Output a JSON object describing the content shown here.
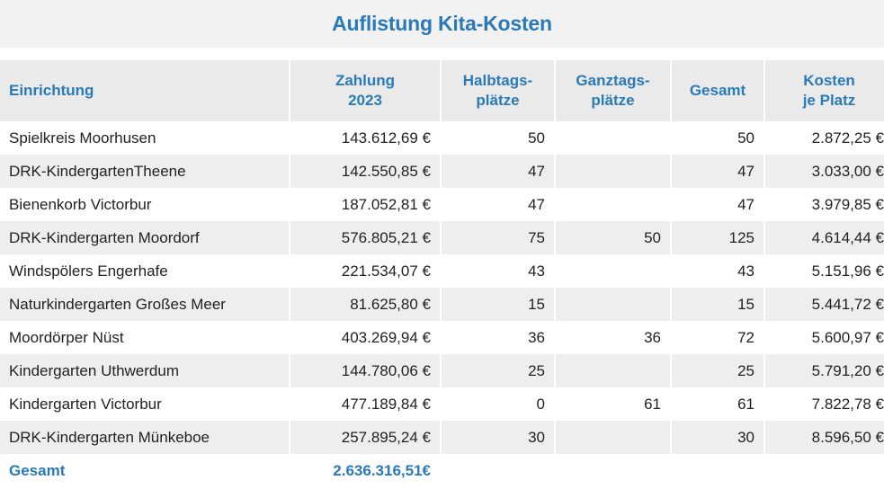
{
  "title": "Auflistung Kita-Kosten",
  "columns": {
    "einrichtung": "Einrichtung",
    "zahlung_l1": "Zahlung",
    "zahlung_l2": "2023",
    "halbtags_l1": "Halbtags-",
    "halbtags_l2": "plätze",
    "ganztags_l1": "Ganztags-",
    "ganztags_l2": "plätze",
    "gesamt": "Gesamt",
    "kosten_l1": "Kosten",
    "kosten_l2": "je Platz"
  },
  "rows": [
    {
      "name": "Spielkreis Moorhusen",
      "zahlung": "143.612,69 €",
      "halbtags": "50",
      "ganztags": "",
      "gesamt": "50",
      "kosten": "2.872,25 €"
    },
    {
      "name": "DRK-KindergartenTheene",
      "zahlung": "142.550,85 €",
      "halbtags": "47",
      "ganztags": "",
      "gesamt": "47",
      "kosten": "3.033,00 €"
    },
    {
      "name": "Bienenkorb Victorbur",
      "zahlung": "187.052,81 €",
      "halbtags": "47",
      "ganztags": "",
      "gesamt": "47",
      "kosten": "3.979,85 €"
    },
    {
      "name": "DRK-Kindergarten Moordorf",
      "zahlung": "576.805,21 €",
      "halbtags": "75",
      "ganztags": "50",
      "gesamt": "125",
      "kosten": "4.614,44 €"
    },
    {
      "name": "Windspölers Engerhafe",
      "zahlung": "221.534,07 €",
      "halbtags": "43",
      "ganztags": "",
      "gesamt": "43",
      "kosten": "5.151,96 €"
    },
    {
      "name": "Naturkindergarten Großes Meer",
      "zahlung": "81.625,80 €",
      "halbtags": "15",
      "ganztags": "",
      "gesamt": "15",
      "kosten": "5.441,72 €"
    },
    {
      "name": "Moordörper Nüst",
      "zahlung": "403.269,94 €",
      "halbtags": "36",
      "ganztags": "36",
      "gesamt": "72",
      "kosten": "5.600,97 €"
    },
    {
      "name": "Kindergarten Uthwerdum",
      "zahlung": "144.780,06 €",
      "halbtags": "25",
      "ganztags": "",
      "gesamt": "25",
      "kosten": "5.791,20 €"
    },
    {
      "name": "Kindergarten Victorbur",
      "zahlung": "477.189,84 €",
      "halbtags": "0",
      "ganztags": "61",
      "gesamt": "61",
      "kosten": "7.822,78 €"
    },
    {
      "name": "DRK-Kindergarten Münkeboe",
      "zahlung": "257.895,24 €",
      "halbtags": "30",
      "ganztags": "",
      "gesamt": "30",
      "kosten": "8.596,50 €"
    }
  ],
  "total": {
    "label": "Gesamt",
    "zahlung": "2.636.316,51€"
  },
  "colors": {
    "accent": "#2a7ab8",
    "header_bg": "#eaeaea",
    "stripe": "#eeeeee"
  }
}
